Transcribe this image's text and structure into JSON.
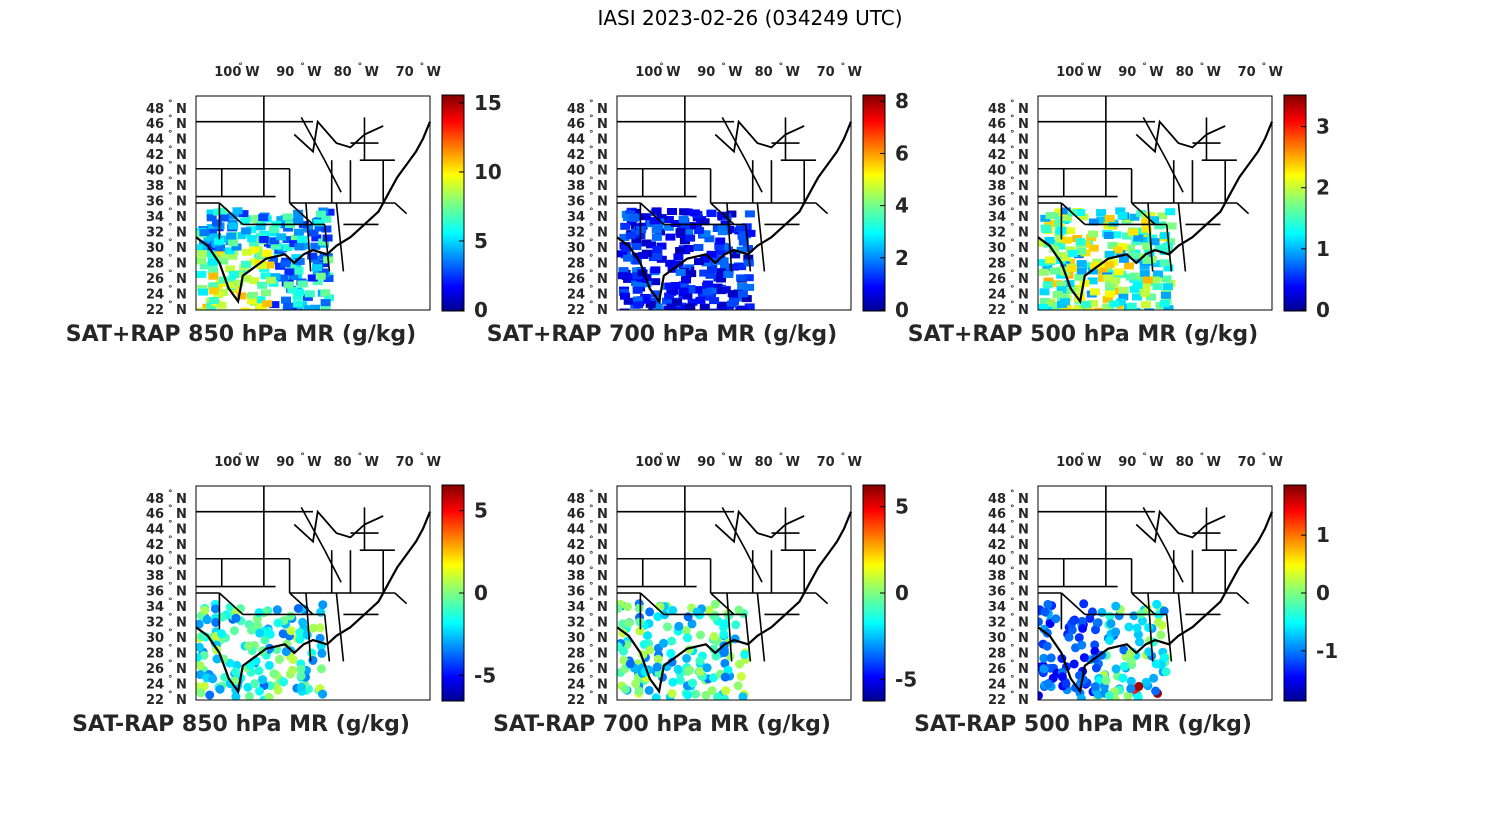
{
  "figure": {
    "title": "IASI 2023-02-26 (034249 UTC)"
  },
  "map_axes": {
    "lon_ticks": [
      "100",
      "90",
      "80",
      "70"
    ],
    "lon_hemisphere": "W",
    "lat_ticks": [
      "48",
      "46",
      "44",
      "42",
      "40",
      "38",
      "36",
      "34",
      "32",
      "30",
      "28",
      "26",
      "24",
      "22"
    ],
    "lat_hemisphere": "N",
    "degree_symbol": "°"
  },
  "panels": [
    {
      "title": "SAT+RAP 850 hPa MR (g/kg)",
      "colorbar": {
        "ticks": [
          "15",
          "10",
          "5",
          "0"
        ],
        "range": [
          0,
          15.5
        ]
      },
      "kind": "full"
    },
    {
      "title": "SAT+RAP 700 hPa MR (g/kg)",
      "colorbar": {
        "ticks": [
          "8",
          "6",
          "4",
          "2",
          "0"
        ],
        "range": [
          0,
          8.2
        ]
      },
      "kind": "full"
    },
    {
      "title": "SAT+RAP 500 hPa MR (g/kg)",
      "colorbar": {
        "ticks": [
          "3",
          "2",
          "1",
          "0"
        ],
        "range": [
          0,
          3.5
        ]
      },
      "kind": "full"
    },
    {
      "title": "SAT-RAP 850 hPa MR (g/kg)",
      "colorbar": {
        "ticks": [
          "5",
          "0",
          "-5"
        ],
        "range": [
          -6.5,
          6.5
        ]
      },
      "kind": "diff"
    },
    {
      "title": "SAT-RAP 700 hPa MR (g/kg)",
      "colorbar": {
        "ticks": [
          "5",
          "0",
          "-5"
        ],
        "range": [
          -6.2,
          6.2
        ]
      },
      "kind": "diff"
    },
    {
      "title": "SAT-RAP 500 hPa MR (g/kg)",
      "colorbar": {
        "ticks": [
          "1",
          "0",
          "-1"
        ],
        "range": [
          -1.85,
          1.85
        ]
      },
      "kind": "diff"
    }
  ],
  "colormap": "jet"
}
